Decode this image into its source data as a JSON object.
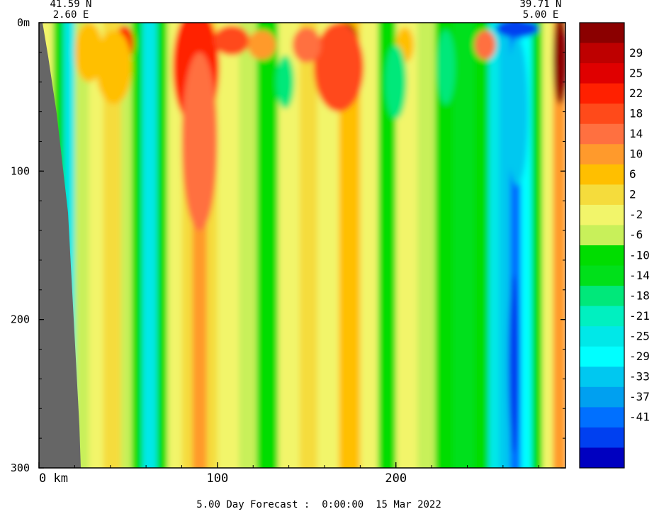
{
  "chart_data": {
    "type": "heatmap",
    "title": "",
    "corner_labels": {
      "left": {
        "lat": "41.59 N",
        "lon": "2.60 E"
      },
      "right": {
        "lat": "39.71 N",
        "lon": "5.00 E"
      }
    },
    "xlabel": "km",
    "ylabel": "",
    "x_range": [
      0,
      295
    ],
    "y_range": [
      0,
      300
    ],
    "y_inverted": true,
    "x_ticks": [
      {
        "value": 0,
        "label": "0 km"
      },
      {
        "value": 100,
        "label": "100"
      },
      {
        "value": 200,
        "label": "200"
      }
    ],
    "y_ticks": [
      {
        "value": 0,
        "label": "0m"
      },
      {
        "value": 100,
        "label": "100"
      },
      {
        "value": 200,
        "label": "200"
      },
      {
        "value": 300,
        "label": "300"
      }
    ],
    "footer": "5.00 Day Forecast :  0:00:00  15 Mar 2022",
    "colorbar": {
      "placement": "right",
      "bands": [
        {
          "color": "#8b0000",
          "label": ""
        },
        {
          "color": "#be0000",
          "label": "29"
        },
        {
          "color": "#e00000",
          "label": "25"
        },
        {
          "color": "#ff2000",
          "label": "22"
        },
        {
          "color": "#ff4a1a",
          "label": "18"
        },
        {
          "color": "#ff7040",
          "label": "14"
        },
        {
          "color": "#ff9a2c",
          "label": "10"
        },
        {
          "color": "#ffbf00",
          "label": "6"
        },
        {
          "color": "#f5dc3c",
          "label": "2"
        },
        {
          "color": "#f2f56a",
          "label": "-2"
        },
        {
          "color": "#c8f05a",
          "label": "-6"
        },
        {
          "color": "#00dd00",
          "label": "-10"
        },
        {
          "color": "#00e01a",
          "label": "-14"
        },
        {
          "color": "#00e87a",
          "label": "-18"
        },
        {
          "color": "#00f0c0",
          "label": "-21"
        },
        {
          "color": "#00e8e8",
          "label": "-25"
        },
        {
          "color": "#00ffff",
          "label": "-29"
        },
        {
          "color": "#00c8f0",
          "label": "-33"
        },
        {
          "color": "#00a0f0",
          "label": "-37"
        },
        {
          "color": "#0070ff",
          "label": "-41"
        },
        {
          "color": "#0040f0",
          "label": ""
        },
        {
          "color": "#0000c0",
          "label": ""
        }
      ]
    },
    "columns": [
      {
        "x0": 0,
        "x1": 8,
        "band": 9
      },
      {
        "x0": 8,
        "x1": 14,
        "band": 11
      },
      {
        "x0": 14,
        "x1": 20,
        "band": 15
      },
      {
        "x0": 20,
        "x1": 28,
        "band": 10
      },
      {
        "x0": 28,
        "x1": 36,
        "band": 9
      },
      {
        "x0": 36,
        "x1": 46,
        "band": 8
      },
      {
        "x0": 46,
        "x1": 52,
        "band": 10
      },
      {
        "x0": 52,
        "x1": 58,
        "band": 11
      },
      {
        "x0": 58,
        "x1": 66,
        "band": 15
      },
      {
        "x0": 66,
        "x1": 72,
        "band": 11
      },
      {
        "x0": 72,
        "x1": 80,
        "band": 9
      },
      {
        "x0": 80,
        "x1": 86,
        "band": 8
      },
      {
        "x0": 86,
        "x1": 94,
        "band": 6
      },
      {
        "x0": 94,
        "x1": 100,
        "band": 8
      },
      {
        "x0": 100,
        "x1": 112,
        "band": 9
      },
      {
        "x0": 112,
        "x1": 122,
        "band": 10
      },
      {
        "x0": 122,
        "x1": 134,
        "band": 11
      },
      {
        "x0": 134,
        "x1": 146,
        "band": 9
      },
      {
        "x0": 146,
        "x1": 156,
        "band": 8
      },
      {
        "x0": 156,
        "x1": 168,
        "band": 9
      },
      {
        "x0": 168,
        "x1": 180,
        "band": 7
      },
      {
        "x0": 180,
        "x1": 190,
        "band": 9
      },
      {
        "x0": 190,
        "x1": 200,
        "band": 11
      },
      {
        "x0": 200,
        "x1": 212,
        "band": 9
      },
      {
        "x0": 212,
        "x1": 222,
        "band": 10
      },
      {
        "x0": 222,
        "x1": 232,
        "band": 11
      },
      {
        "x0": 232,
        "x1": 244,
        "band": 12
      },
      {
        "x0": 244,
        "x1": 252,
        "band": 11
      },
      {
        "x0": 252,
        "x1": 258,
        "band": 15
      },
      {
        "x0": 258,
        "x1": 264,
        "band": 17
      },
      {
        "x0": 264,
        "x1": 270,
        "band": 19
      },
      {
        "x0": 270,
        "x1": 276,
        "band": 16
      },
      {
        "x0": 276,
        "x1": 282,
        "band": 11
      },
      {
        "x0": 282,
        "x1": 288,
        "band": 9
      },
      {
        "x0": 288,
        "x1": 295,
        "band": 6
      }
    ],
    "features": [
      {
        "x": 88,
        "depth": 12,
        "rx": 9,
        "ry": 18,
        "band": 0
      },
      {
        "x": 88,
        "depth": 30,
        "rx": 13,
        "ry": 40,
        "band": 3
      },
      {
        "x": 90,
        "depth": 80,
        "rx": 10,
        "ry": 60,
        "band": 5
      },
      {
        "x": 172,
        "depth": 14,
        "rx": 7,
        "ry": 14,
        "band": 0
      },
      {
        "x": 168,
        "depth": 30,
        "rx": 14,
        "ry": 30,
        "band": 4
      },
      {
        "x": 48,
        "depth": 14,
        "rx": 5,
        "ry": 12,
        "band": 3
      },
      {
        "x": 42,
        "depth": 30,
        "rx": 10,
        "ry": 25,
        "band": 7
      },
      {
        "x": 28,
        "depth": 20,
        "rx": 8,
        "ry": 20,
        "band": 7
      },
      {
        "x": 108,
        "depth": 12,
        "rx": 10,
        "ry": 10,
        "band": 4
      },
      {
        "x": 125,
        "depth": 15,
        "rx": 8,
        "ry": 10,
        "band": 6
      },
      {
        "x": 150,
        "depth": 15,
        "rx": 8,
        "ry": 12,
        "band": 5
      },
      {
        "x": 250,
        "depth": 15,
        "rx": 6,
        "ry": 10,
        "band": 5
      },
      {
        "x": 205,
        "depth": 15,
        "rx": 5,
        "ry": 12,
        "band": 7
      },
      {
        "x": 268,
        "depth": 4,
        "rx": 12,
        "ry": 6,
        "band": 20
      },
      {
        "x": 268,
        "depth": 60,
        "rx": 6,
        "ry": 50,
        "band": 17
      },
      {
        "x": 266,
        "depth": 230,
        "rx": 3,
        "ry": 60,
        "band": 20
      },
      {
        "x": 292,
        "depth": 25,
        "rx": 4,
        "ry": 30,
        "band": 0
      },
      {
        "x": 200,
        "depth": 40,
        "rx": 6,
        "ry": 25,
        "band": 13
      },
      {
        "x": 228,
        "depth": 30,
        "rx": 5,
        "ry": 25,
        "band": 13
      },
      {
        "x": 138,
        "depth": 40,
        "rx": 5,
        "ry": 18,
        "band": 13
      }
    ]
  }
}
